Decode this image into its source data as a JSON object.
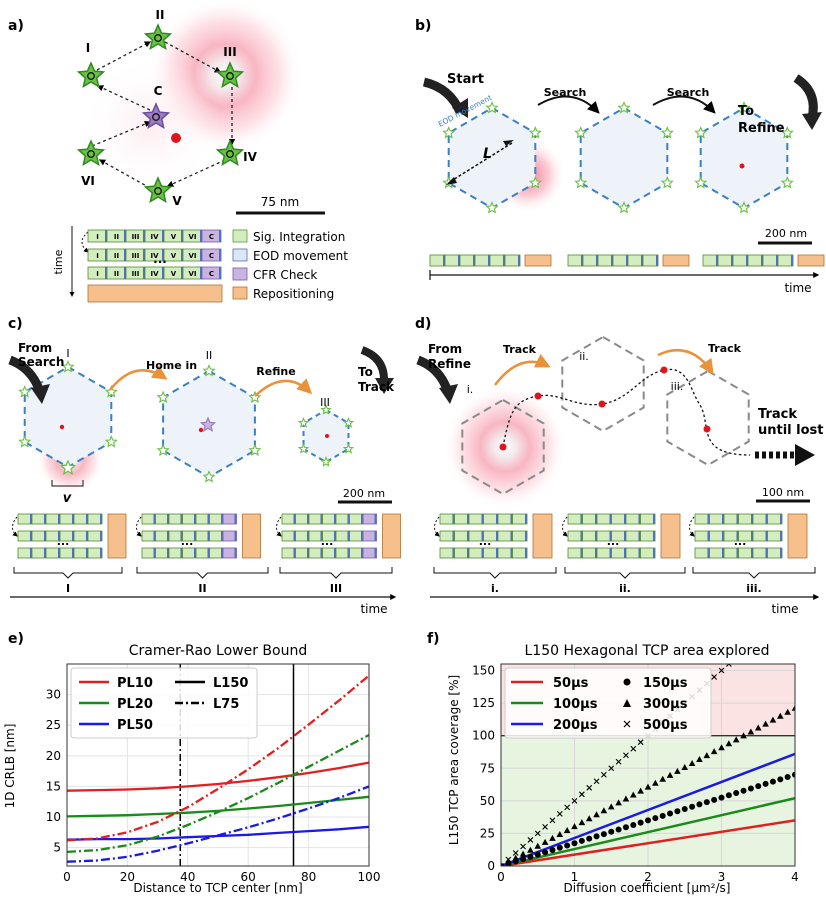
{
  "panels": {
    "a": {
      "label": "a)",
      "vertices": [
        "I",
        "II",
        "III",
        "IV",
        "V",
        "VI"
      ],
      "center_label": "C",
      "scalebar": "75 nm",
      "time_label": "time",
      "ellipsis": "...",
      "seq_cells": [
        "I",
        "II",
        "III",
        "IV",
        "V",
        "VI",
        "C"
      ],
      "legend": [
        "Sig. Integration",
        "EOD movement",
        "CFR Check",
        "Repositioning"
      ]
    },
    "b": {
      "label": "b)",
      "start": "Start",
      "search1": "Search",
      "search2": "Search",
      "to_refine": [
        "To",
        "Refine"
      ],
      "eod_movement": "EOD movement",
      "L": "L",
      "scalebar": "200 nm",
      "time": "time"
    },
    "c": {
      "label": "c)",
      "from_search": [
        "From",
        "Search"
      ],
      "home_in": "Home in",
      "refine": "Refine",
      "to_track": [
        "To",
        "Track"
      ],
      "stages": [
        "I",
        "II",
        "III"
      ],
      "v": "v",
      "scalebar": "200 nm",
      "time": "time",
      "ellipsis": "..."
    },
    "d": {
      "label": "d)",
      "from_refine": [
        "From",
        "Refine"
      ],
      "track1": "Track",
      "track2": "Track",
      "stages": [
        "i.",
        "ii.",
        "iii."
      ],
      "track_until_lost": [
        "Track",
        "until lost"
      ],
      "scalebar": "100 nm",
      "time": "time",
      "ellipsis": "..."
    }
  },
  "colors": {
    "star_fill": "#6abf45",
    "star_stroke": "#2e8b20",
    "center_star": "#9b7cc0",
    "hex_dash": "#3b7fc4",
    "sig_integration": "#d4edbf",
    "eod": "#dce6f4",
    "cfr": "#c9b3e0",
    "repositioning": "#f6c08c",
    "track_arrow": "#e8923a"
  },
  "chart_data": [
    {
      "type": "line",
      "panel_label": "e)",
      "title": "Cramer-Rao Lower Bound",
      "xlabel": "Distance to TCP center [nm]",
      "ylabel": "1D CRLB [nm]",
      "xlim": [
        0,
        100
      ],
      "ylim": [
        2,
        35
      ],
      "xticks": [
        0,
        20,
        40,
        60,
        80,
        100
      ],
      "yticks": [
        5,
        10,
        15,
        20,
        25,
        30
      ],
      "grid": true,
      "legend_placement": "top-left",
      "vlines": [
        {
          "x": 37.5,
          "style": "dashdot",
          "color": "#000000"
        },
        {
          "x": 75,
          "style": "solid",
          "color": "#000000"
        }
      ],
      "legend": [
        {
          "name": "PL10",
          "color": "#e02020",
          "style": "solid"
        },
        {
          "name": "PL20",
          "color": "#1a8a1a",
          "style": "solid"
        },
        {
          "name": "PL50",
          "color": "#1a1ae0",
          "style": "solid"
        },
        {
          "name": "L150",
          "color": "#000000",
          "style": "solid"
        },
        {
          "name": "L75",
          "color": "#000000",
          "style": "dashdot"
        }
      ],
      "x": [
        0,
        10,
        20,
        30,
        40,
        50,
        60,
        70,
        80,
        90,
        100
      ],
      "series": [
        {
          "name": "PL10",
          "geometry": "L150",
          "color": "#e02020",
          "style": "solid",
          "values": [
            14.3,
            14.4,
            14.5,
            14.7,
            15.0,
            15.4,
            15.9,
            16.5,
            17.2,
            18.0,
            18.9
          ]
        },
        {
          "name": "PL20",
          "geometry": "L150",
          "color": "#1a8a1a",
          "style": "solid",
          "values": [
            10.1,
            10.2,
            10.3,
            10.5,
            10.7,
            11.0,
            11.4,
            11.8,
            12.3,
            12.8,
            13.3
          ]
        },
        {
          "name": "PL50",
          "geometry": "L150",
          "color": "#1a1ae0",
          "style": "solid",
          "values": [
            6.3,
            6.4,
            6.4,
            6.5,
            6.7,
            6.9,
            7.1,
            7.4,
            7.7,
            8.0,
            8.4
          ]
        },
        {
          "name": "PL10",
          "geometry": "L75",
          "color": "#e02020",
          "style": "dashdot",
          "values": [
            6.2,
            6.5,
            7.5,
            9.2,
            11.6,
            14.6,
            17.8,
            21.3,
            25.1,
            29.0,
            33.1
          ]
        },
        {
          "name": "PL20",
          "geometry": "L75",
          "color": "#1a8a1a",
          "style": "dashdot",
          "values": [
            4.3,
            4.6,
            5.4,
            6.8,
            8.7,
            10.8,
            13.1,
            15.6,
            18.2,
            20.8,
            23.4
          ]
        },
        {
          "name": "PL50",
          "geometry": "L75",
          "color": "#1a1ae0",
          "style": "dashdot",
          "values": [
            2.7,
            2.9,
            3.5,
            4.5,
            5.7,
            7.0,
            8.3,
            9.8,
            11.4,
            13.1,
            15.0
          ]
        }
      ]
    },
    {
      "type": "line",
      "panel_label": "f)",
      "title": "L150 Hexagonal TCP area explored",
      "xlabel": "Diffusion coefficient [μm²/s]",
      "ylabel": "L150 TCP area coverage [%]",
      "xlim": [
        0,
        4
      ],
      "ylim": [
        0,
        155
      ],
      "xticks": [
        0,
        1,
        2,
        3,
        4
      ],
      "yticks": [
        0,
        25,
        50,
        75,
        100,
        125,
        150
      ],
      "grid": true,
      "legend_placement": "top-left",
      "shaded_regions": [
        {
          "from": 0,
          "to": 100,
          "color": "#e6f4e0"
        },
        {
          "from": 100,
          "to": 155,
          "color": "#fbe3e3"
        }
      ],
      "hline": 100,
      "x": [
        0,
        4
      ],
      "series": [
        {
          "name": "50μs",
          "marker": "line",
          "color": "#e02020",
          "values": [
            0,
            35
          ]
        },
        {
          "name": "100μs",
          "marker": "line",
          "color": "#1a8a1a",
          "values": [
            0,
            52
          ]
        },
        {
          "name": "200μs",
          "marker": "line",
          "color": "#1a1ae0",
          "values": [
            0,
            86
          ]
        },
        {
          "name": "150μs",
          "marker": "circle",
          "color": "#000000",
          "values": [
            0,
            70
          ]
        },
        {
          "name": "300μs",
          "marker": "triangle",
          "color": "#000000",
          "values": [
            0,
            121
          ]
        },
        {
          "name": "500μs",
          "marker": "x",
          "color": "#000000",
          "values": [
            0,
            200
          ]
        }
      ],
      "legend_rows": [
        [
          "50μs",
          "150μs"
        ],
        [
          "100μs",
          "300μs"
        ],
        [
          "200μs",
          "500μs"
        ]
      ]
    }
  ]
}
